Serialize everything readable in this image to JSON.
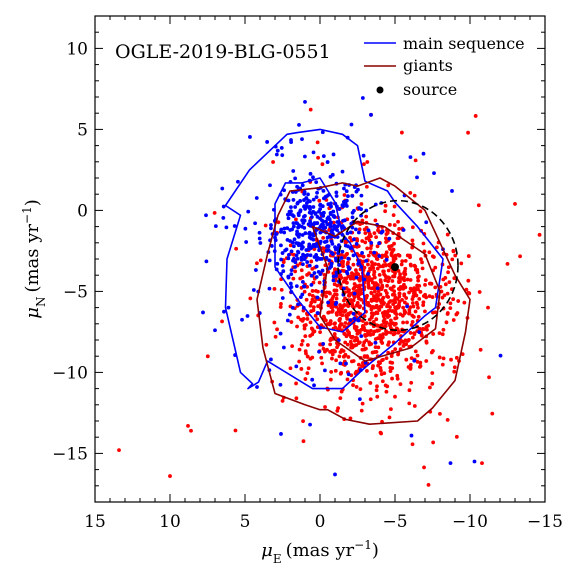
{
  "chart_data": {
    "type": "scatter",
    "annotation": "OGLE-2019-BLG-0551",
    "xlabel": "μE (mas yr−1)",
    "ylabel": "μN (mas yr−1)",
    "xaxis": {
      "symbol": "μ",
      "sub": "E",
      "unit_prefix": "(mas yr",
      "unit_exp": "−1",
      "unit_suffix": ")"
    },
    "yaxis": {
      "symbol": "μ",
      "sub": "N",
      "unit_prefix": "(mas yr",
      "unit_exp": "−1",
      "unit_suffix": ")"
    },
    "xlim": [
      15,
      -15
    ],
    "ylim": [
      -18,
      12
    ],
    "x_ticks": [
      15,
      10,
      5,
      0,
      -5,
      -10,
      -15
    ],
    "x_tick_labels": [
      "15",
      "10",
      "5",
      "0",
      "−5",
      "−10",
      "−15"
    ],
    "y_ticks": [
      10,
      5,
      0,
      -5,
      -10,
      -15
    ],
    "y_tick_labels": [
      "10",
      "5",
      "0",
      "−5",
      "−10",
      "−15"
    ],
    "grid": false,
    "legend_position": "top-right",
    "legend": [
      {
        "label": "main sequence",
        "kind": "line",
        "color": "#0000ff"
      },
      {
        "label": "giants",
        "kind": "line",
        "color": "#8b0000"
      },
      {
        "label": "source",
        "kind": "marker",
        "color": "#000000"
      }
    ],
    "colors": {
      "main_sequence": "#0000ff",
      "giants": "#8b0000",
      "red_points": "#ff0000",
      "blue_points": "#0000ff",
      "source": "#000000"
    },
    "source_point": {
      "x": -5.0,
      "y": -3.5
    },
    "source_error_ellipse": {
      "cx": -5.2,
      "cy": -3.4,
      "rx": 4.0,
      "ry": 4.0,
      "style": "dashed"
    },
    "contours": [
      {
        "series": "main sequence",
        "level": "outer",
        "points": [
          [
            6.3,
            0.3
          ],
          [
            5.3,
            -0.3
          ],
          [
            6.2,
            -3
          ],
          [
            6.3,
            -6
          ],
          [
            5.3,
            -10
          ],
          [
            4.5,
            -10.7
          ],
          [
            4.8,
            -11
          ],
          [
            4.1,
            -10.6
          ],
          [
            3.5,
            -9.3
          ],
          [
            0.5,
            -11
          ],
          [
            -1.5,
            -11
          ],
          [
            -3,
            -9.7
          ],
          [
            -5,
            -8.2
          ],
          [
            -7,
            -6.5
          ],
          [
            -7.7,
            -6
          ],
          [
            -8.2,
            -3
          ],
          [
            -6.5,
            -1
          ],
          [
            -5,
            0.5
          ],
          [
            -4.5,
            1.2
          ],
          [
            -3,
            1.8
          ],
          [
            -2.5,
            4
          ],
          [
            -1.5,
            4.7
          ],
          [
            0,
            5
          ],
          [
            1.5,
            4.8
          ],
          [
            2.2,
            4.7
          ],
          [
            4.7,
            2.5
          ],
          [
            6.3,
            0.3
          ]
        ]
      },
      {
        "series": "main sequence",
        "level": "inner",
        "points": [
          [
            2.3,
            1.7
          ],
          [
            3,
            0.4
          ],
          [
            3,
            -3.5
          ],
          [
            1.5,
            -5.5
          ],
          [
            0,
            -7.2
          ],
          [
            -1.5,
            -7.5
          ],
          [
            -3,
            -6.3
          ],
          [
            -2.8,
            -3.5
          ],
          [
            -2,
            -2
          ],
          [
            -1.5,
            -1.5
          ],
          [
            -1,
            0.5
          ],
          [
            0,
            2
          ],
          [
            1.2,
            1.7
          ],
          [
            2.3,
            1.7
          ]
        ]
      },
      {
        "series": "giants",
        "level": "outer",
        "points": [
          [
            2,
            1.2
          ],
          [
            2.8,
            -0.3
          ],
          [
            3.5,
            -2.7
          ],
          [
            4.2,
            -5.5
          ],
          [
            3.8,
            -8.5
          ],
          [
            3,
            -11.3
          ],
          [
            1,
            -12
          ],
          [
            0,
            -12.3
          ],
          [
            -0.5,
            -12.3
          ],
          [
            -1.7,
            -12.9
          ],
          [
            -3.3,
            -13.2
          ],
          [
            -6.5,
            -13
          ],
          [
            -7.5,
            -12.2
          ],
          [
            -9,
            -10.5
          ],
          [
            -9.7,
            -7.5
          ],
          [
            -10,
            -5.5
          ],
          [
            -9,
            -4
          ],
          [
            -8,
            -2
          ],
          [
            -7,
            0
          ],
          [
            -5,
            1.5
          ],
          [
            -4,
            2
          ],
          [
            -2.5,
            1.5
          ],
          [
            -1.5,
            1.7
          ],
          [
            0,
            1.4
          ],
          [
            2,
            1.2
          ]
        ]
      },
      {
        "series": "giants",
        "level": "inner",
        "points": [
          [
            0.5,
            -1
          ],
          [
            -0.5,
            -3.5
          ],
          [
            0,
            -6.5
          ],
          [
            -1,
            -8
          ],
          [
            -3,
            -9.3
          ],
          [
            -6,
            -8.5
          ],
          [
            -7.7,
            -7.3
          ],
          [
            -8,
            -5
          ],
          [
            -7,
            -2.7
          ],
          [
            -4.3,
            -1
          ],
          [
            -2.5,
            -0.7
          ],
          [
            -1,
            -1.6
          ],
          [
            0.5,
            -1
          ]
        ]
      }
    ]
  }
}
